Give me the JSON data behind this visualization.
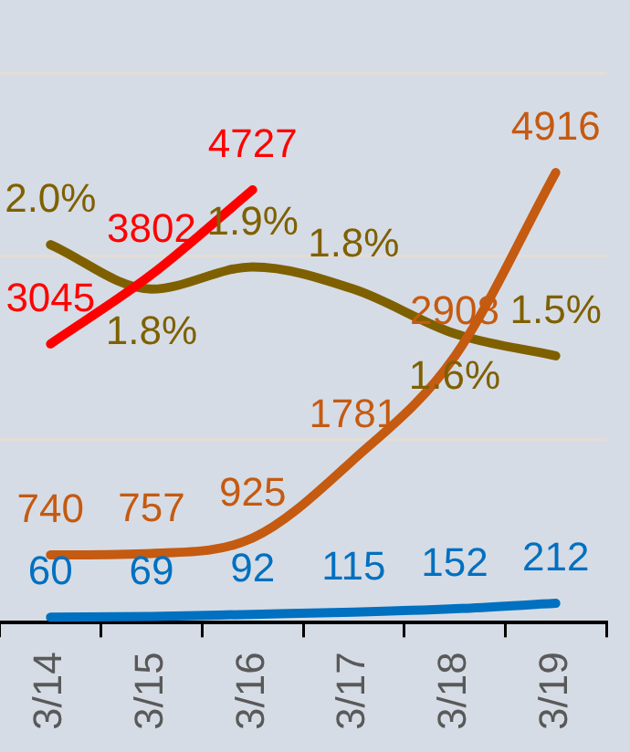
{
  "chart_data": {
    "type": "line",
    "categories": [
      "3/14",
      "3/15",
      "3/16",
      "3/17",
      "3/18",
      "3/19"
    ],
    "series": [
      {
        "color": "#ff0000",
        "values": [
          3045,
          3802,
          4727,
          null,
          null,
          null
        ]
      },
      {
        "color": "#c55a11",
        "values": [
          740,
          757,
          925,
          1781,
          2908,
          4916
        ]
      },
      {
        "color": "#0070c0",
        "values": [
          60,
          69,
          92,
          115,
          152,
          212
        ]
      },
      {
        "color": "#7f6000",
        "axis": "y2",
        "values": [
          2.0,
          1.8,
          1.9,
          1.8,
          1.6,
          1.5
        ],
        "value_labels": [
          "2.0%",
          "1.8%",
          "1.9%",
          "1.8%",
          "1.6%",
          "1.5%"
        ]
      }
    ],
    "ylim": [
      0,
      6800
    ],
    "yticks": [
      {
        "value": 2000,
        "label": null
      },
      {
        "value": 4000,
        "label": null
      },
      {
        "value": 6000,
        "label": null
      }
    ],
    "y2lim": [
      0.3,
      3.1
    ],
    "grid": "y",
    "tick_labels": "x",
    "data_labels": true,
    "marker": "none",
    "line_style": "solid"
  }
}
